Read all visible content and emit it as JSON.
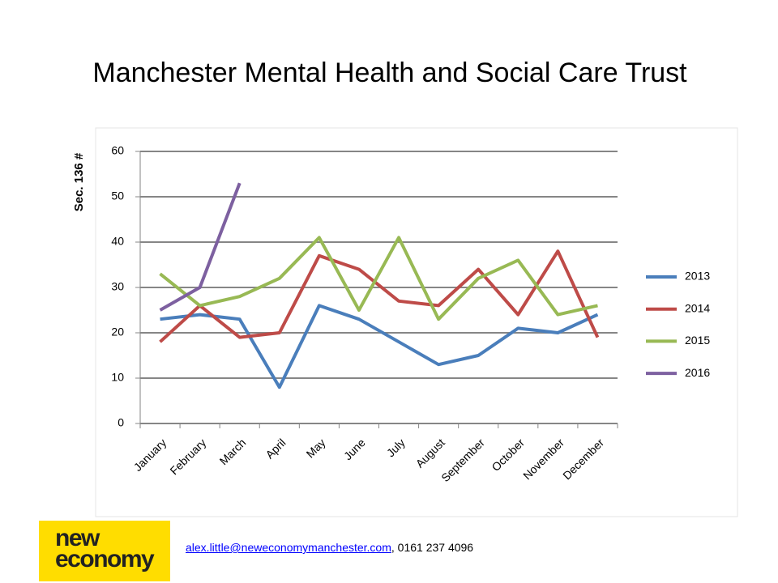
{
  "chart_data": {
    "type": "line",
    "title": "Manchester Mental Health and Social Care Trust",
    "y_label": "Sec. 136 #",
    "categories": [
      "January",
      "February",
      "March",
      "April",
      "May",
      "June",
      "July",
      "August",
      "September",
      "October",
      "November",
      "December"
    ],
    "series": [
      {
        "name": "2013",
        "color": "#4a7ebb",
        "values": [
          23,
          24,
          23,
          8,
          26,
          23,
          18,
          13,
          15,
          21,
          20,
          24
        ]
      },
      {
        "name": "2014",
        "color": "#be4b48",
        "values": [
          18,
          26,
          19,
          20,
          37,
          34,
          27,
          26,
          34,
          24,
          38,
          19
        ]
      },
      {
        "name": "2015",
        "color": "#98b954",
        "values": [
          33,
          26,
          28,
          32,
          41,
          25,
          41,
          23,
          32,
          36,
          24,
          26
        ]
      },
      {
        "name": "2016",
        "color": "#7d60a0",
        "values": [
          25,
          30,
          53,
          null,
          null,
          null,
          null,
          null,
          null,
          null,
          null,
          null
        ]
      }
    ],
    "ylim": [
      0,
      60
    ],
    "yticks": [
      0,
      10,
      20,
      30,
      40,
      50,
      60
    ],
    "grid": true,
    "legend": "right"
  },
  "footer": {
    "logo": [
      "new",
      "economy"
    ],
    "email": "alex.little@neweconomymanchester.com",
    "contact": ", 0161 237 4096"
  }
}
